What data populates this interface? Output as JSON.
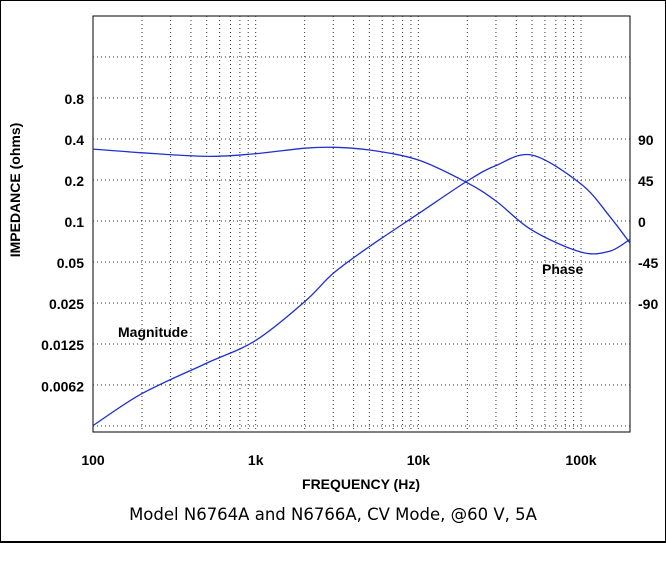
{
  "chart_data": {
    "type": "line",
    "title": "",
    "caption": "Model N6764A and N6766A, CV Mode, @60 V, 5A",
    "xlabel": "FREQUENCY (Hz)",
    "ylabel": "IMPEDANCE (ohms)",
    "x_scale": "log",
    "xlim": [
      100,
      200000
    ],
    "x_ticks": [
      "100",
      "1k",
      "10k",
      "100k"
    ],
    "y_ticks_left": [
      "0.8",
      "0.4",
      "0.2",
      "0.1",
      "0.05",
      "0.025",
      "0.0125",
      "0.0062"
    ],
    "y_ticks_right": [
      "90",
      "45",
      "0",
      "-45",
      "-90"
    ],
    "grid": true,
    "series": [
      {
        "name": "Magnitude",
        "axis": "left",
        "color": "#1f2fd0",
        "x": [
          100,
          200,
          500,
          1000,
          2000,
          3000,
          5000,
          10000,
          20000,
          30000,
          50000,
          100000,
          150000,
          200000
        ],
        "y": [
          0.0032,
          0.0055,
          0.0092,
          0.0135,
          0.026,
          0.042,
          0.066,
          0.115,
          0.2,
          0.26,
          0.31,
          0.19,
          0.11,
          0.07
        ]
      },
      {
        "name": "Phase",
        "axis": "right",
        "color": "#1f2fd0",
        "x": [
          100,
          200,
          500,
          1000,
          2000,
          3000,
          5000,
          10000,
          20000,
          30000,
          50000,
          100000,
          150000,
          200000
        ],
        "y": [
          80,
          76,
          72,
          75,
          81,
          82,
          79,
          68,
          43,
          23,
          -9,
          -33,
          -32,
          -19
        ]
      }
    ]
  }
}
